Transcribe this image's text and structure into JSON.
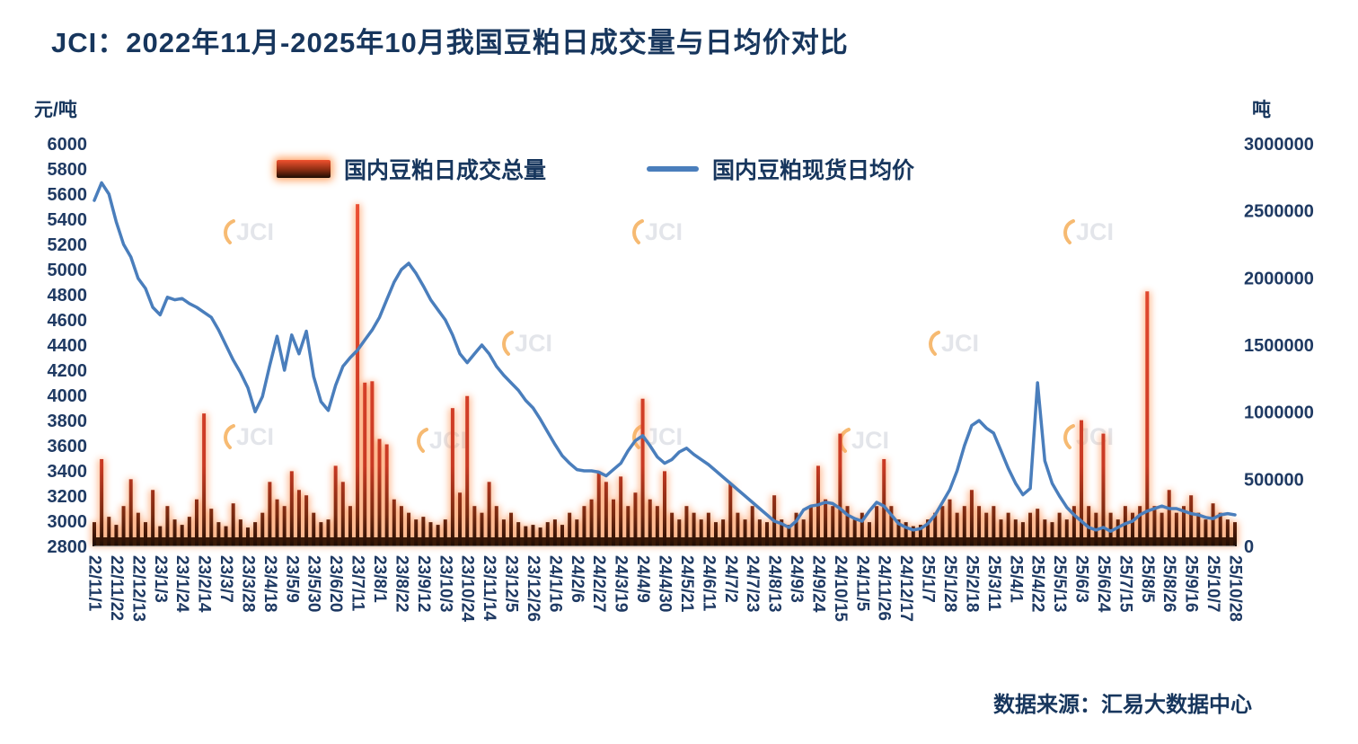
{
  "watermark_text": "JCI",
  "source": "数据来源：汇易大数据中心",
  "colors": {
    "title_navy": "#17365d",
    "axis_navy": "#1f3a63",
    "line_blue": "#4a7ebc",
    "bar_red_top": "#f25638",
    "bar_dark": "#1d0c03",
    "glow_orange": "#ff9a5e",
    "watermark_gray": "#cdd1d9",
    "watermark_orange": "#f08300"
  },
  "chart_data": {
    "type": "combo",
    "title": "JCI：2022年11月-2025年10月我国豆粕日成交量与日均价对比",
    "grid": false,
    "legend_position": "top-center",
    "sampling": "values estimated at 7-day intervals from 22/11/1 to 25/10/28",
    "x_points_per_tick": 3,
    "x_tick_labels": [
      "22/11/1",
      "22/11/22",
      "22/12/13",
      "23/1/3",
      "23/1/24",
      "23/2/14",
      "23/3/7",
      "23/3/28",
      "23/4/18",
      "23/5/9",
      "23/5/30",
      "23/6/20",
      "23/7/11",
      "23/8/1",
      "23/8/22",
      "23/9/12",
      "23/10/3",
      "23/10/24",
      "23/11/14",
      "23/12/5",
      "23/12/26",
      "24/1/16",
      "24/2/6",
      "24/2/27",
      "24/3/19",
      "24/4/9",
      "24/4/30",
      "24/5/21",
      "24/6/11",
      "24/7/2",
      "24/7/23",
      "24/8/13",
      "24/9/3",
      "24/9/24",
      "24/10/15",
      "24/11/5",
      "24/11/26",
      "24/12/17",
      "25/1/7",
      "25/1/28",
      "25/2/18",
      "25/3/11",
      "25/4/1",
      "25/4/22",
      "25/5/13",
      "25/6/3",
      "25/6/24",
      "25/7/15",
      "25/8/5",
      "25/8/26",
      "25/9/16",
      "25/10/7",
      "25/10/28"
    ],
    "left_axis": {
      "label": "元/吨",
      "min": 2800,
      "max": 6000,
      "step": 200
    },
    "right_axis": {
      "label": "吨",
      "min": 0,
      "max": 3000000,
      "step": 500000
    },
    "series": [
      {
        "name": "国内豆粕日成交总量",
        "type": "bar",
        "axis": "right",
        "values": [
          180000,
          650000,
          220000,
          160000,
          300000,
          500000,
          250000,
          180000,
          420000,
          150000,
          300000,
          200000,
          160000,
          220000,
          350000,
          990000,
          280000,
          180000,
          150000,
          320000,
          200000,
          140000,
          180000,
          250000,
          480000,
          350000,
          300000,
          560000,
          420000,
          380000,
          250000,
          180000,
          200000,
          600000,
          480000,
          300000,
          2550000,
          1220000,
          1230000,
          800000,
          760000,
          350000,
          300000,
          250000,
          200000,
          220000,
          180000,
          160000,
          200000,
          1030000,
          400000,
          1120000,
          300000,
          250000,
          480000,
          300000,
          200000,
          250000,
          180000,
          150000,
          160000,
          140000,
          180000,
          200000,
          160000,
          250000,
          200000,
          300000,
          350000,
          560000,
          480000,
          350000,
          520000,
          300000,
          400000,
          1100000,
          350000,
          300000,
          560000,
          250000,
          200000,
          300000,
          250000,
          200000,
          250000,
          180000,
          200000,
          470000,
          250000,
          200000,
          300000,
          200000,
          180000,
          380000,
          200000,
          160000,
          250000,
          200000,
          300000,
          600000,
          350000,
          300000,
          840000,
          300000,
          200000,
          250000,
          180000,
          300000,
          650000,
          300000,
          200000,
          180000,
          150000,
          160000,
          200000,
          250000,
          300000,
          350000,
          250000,
          300000,
          420000,
          300000,
          250000,
          300000,
          200000,
          250000,
          200000,
          180000,
          250000,
          280000,
          200000,
          180000,
          250000,
          200000,
          300000,
          940000,
          300000,
          250000,
          840000,
          250000,
          200000,
          300000,
          250000,
          300000,
          1900000,
          300000,
          250000,
          420000,
          250000,
          300000,
          380000,
          250000,
          200000,
          320000,
          250000,
          200000,
          180000
        ]
      },
      {
        "name": "国内豆粕现货日均价",
        "type": "line",
        "axis": "left",
        "values": [
          5550,
          5690,
          5600,
          5380,
          5200,
          5100,
          4930,
          4850,
          4700,
          4640,
          4780,
          4760,
          4770,
          4730,
          4700,
          4660,
          4620,
          4520,
          4400,
          4280,
          4180,
          4060,
          3870,
          3990,
          4240,
          4470,
          4200,
          4480,
          4330,
          4510,
          4150,
          3950,
          3880,
          4080,
          4230,
          4300,
          4360,
          4440,
          4520,
          4620,
          4760,
          4900,
          5000,
          5050,
          4970,
          4870,
          4760,
          4680,
          4600,
          4480,
          4330,
          4260,
          4330,
          4400,
          4330,
          4230,
          4160,
          4100,
          4040,
          3960,
          3900,
          3810,
          3710,
          3610,
          3520,
          3460,
          3410,
          3400,
          3400,
          3390,
          3360,
          3410,
          3460,
          3560,
          3640,
          3680,
          3600,
          3510,
          3460,
          3490,
          3550,
          3580,
          3530,
          3490,
          3450,
          3400,
          3350,
          3300,
          3250,
          3200,
          3150,
          3100,
          3050,
          3000,
          2980,
          2950,
          3000,
          3090,
          3120,
          3130,
          3150,
          3140,
          3100,
          3050,
          3020,
          3000,
          3080,
          3150,
          3120,
          3050,
          2980,
          2950,
          2930,
          2940,
          2980,
          3050,
          3150,
          3250,
          3400,
          3600,
          3760,
          3800,
          3740,
          3700,
          3560,
          3420,
          3300,
          3210,
          3260,
          4100,
          3480,
          3300,
          3200,
          3110,
          3050,
          3000,
          2950,
          2930,
          2950,
          2920,
          2950,
          2980,
          3000,
          3050,
          3080,
          3100,
          3120,
          3100,
          3100,
          3080,
          3060,
          3050,
          3030,
          3020,
          3050,
          3060,
          3050
        ]
      }
    ]
  }
}
